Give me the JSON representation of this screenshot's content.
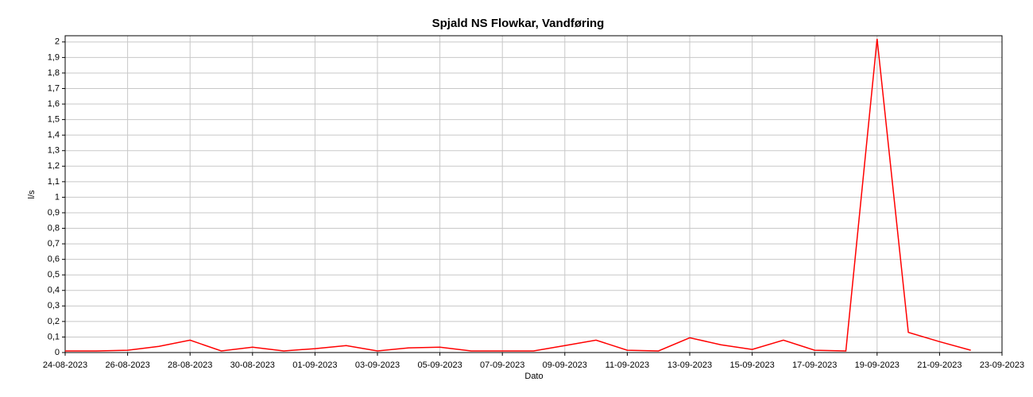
{
  "chart_data": {
    "type": "line",
    "title": "Spjald NS Flowkar, Vandføring",
    "xlabel": "Dato",
    "ylabel": "l/s",
    "x": [
      "2023-08-24",
      "2023-08-25",
      "2023-08-26",
      "2023-08-27",
      "2023-08-28",
      "2023-08-29",
      "2023-08-30",
      "2023-08-31",
      "2023-09-01",
      "2023-09-02",
      "2023-09-03",
      "2023-09-04",
      "2023-09-05",
      "2023-09-06",
      "2023-09-07",
      "2023-09-08",
      "2023-09-09",
      "2023-09-10",
      "2023-09-11",
      "2023-09-12",
      "2023-09-13",
      "2023-09-14",
      "2023-09-15",
      "2023-09-16",
      "2023-09-17",
      "2023-09-18",
      "2023-09-19",
      "2023-09-20",
      "2023-09-21",
      "2023-09-22"
    ],
    "values": [
      0.01,
      0.01,
      0.015,
      0.04,
      0.08,
      0.01,
      0.035,
      0.01,
      0.025,
      0.045,
      0.01,
      0.03,
      0.035,
      0.01,
      0.01,
      0.01,
      0.045,
      0.08,
      0.015,
      0.01,
      0.095,
      0.05,
      0.02,
      0.08,
      0.015,
      0.01,
      2.02,
      0.13,
      0.07,
      0.015
    ],
    "color": "#ff0000",
    "xlim": [
      "2023-08-24",
      "2023-09-23"
    ],
    "xticks": [
      {
        "value": "2023-08-24",
        "label": "24-08-2023"
      },
      {
        "value": "2023-08-26",
        "label": "26-08-2023"
      },
      {
        "value": "2023-08-28",
        "label": "28-08-2023"
      },
      {
        "value": "2023-08-30",
        "label": "30-08-2023"
      },
      {
        "value": "2023-09-01",
        "label": "01-09-2023"
      },
      {
        "value": "2023-09-03",
        "label": "03-09-2023"
      },
      {
        "value": "2023-09-05",
        "label": "05-09-2023"
      },
      {
        "value": "2023-09-07",
        "label": "07-09-2023"
      },
      {
        "value": "2023-09-09",
        "label": "09-09-2023"
      },
      {
        "value": "2023-09-11",
        "label": "11-09-2023"
      },
      {
        "value": "2023-09-13",
        "label": "13-09-2023"
      },
      {
        "value": "2023-09-15",
        "label": "15-09-2023"
      },
      {
        "value": "2023-09-17",
        "label": "17-09-2023"
      },
      {
        "value": "2023-09-19",
        "label": "19-09-2023"
      },
      {
        "value": "2023-09-21",
        "label": "21-09-2023"
      },
      {
        "value": "2023-09-23",
        "label": "23-09-2023"
      }
    ],
    "ylim": [
      0,
      2.04
    ],
    "yticks": [
      0,
      {
        "value": 0.1,
        "label": "0,1"
      },
      {
        "value": 0.2,
        "label": "0,2"
      },
      {
        "value": 0.3,
        "label": "0,3"
      },
      {
        "value": 0.4,
        "label": "0,4"
      },
      {
        "value": 0.5,
        "label": "0,5"
      },
      {
        "value": 0.6,
        "label": "0,6"
      },
      {
        "value": 0.7,
        "label": "0,7"
      },
      {
        "value": 0.8,
        "label": "0,8"
      },
      {
        "value": 0.9,
        "label": "0,9"
      },
      1,
      {
        "value": 1.1,
        "label": "1,1"
      },
      {
        "value": 1.2,
        "label": "1,2"
      },
      {
        "value": 1.3,
        "label": "1,3"
      },
      {
        "value": 1.4,
        "label": "1,4"
      },
      {
        "value": 1.5,
        "label": "1,5"
      },
      {
        "value": 1.6,
        "label": "1,6"
      },
      {
        "value": 1.7,
        "label": "1,7"
      },
      {
        "value": 1.8,
        "label": "1,8"
      },
      {
        "value": 1.9,
        "label": "1,9"
      },
      2
    ],
    "grid": true
  }
}
